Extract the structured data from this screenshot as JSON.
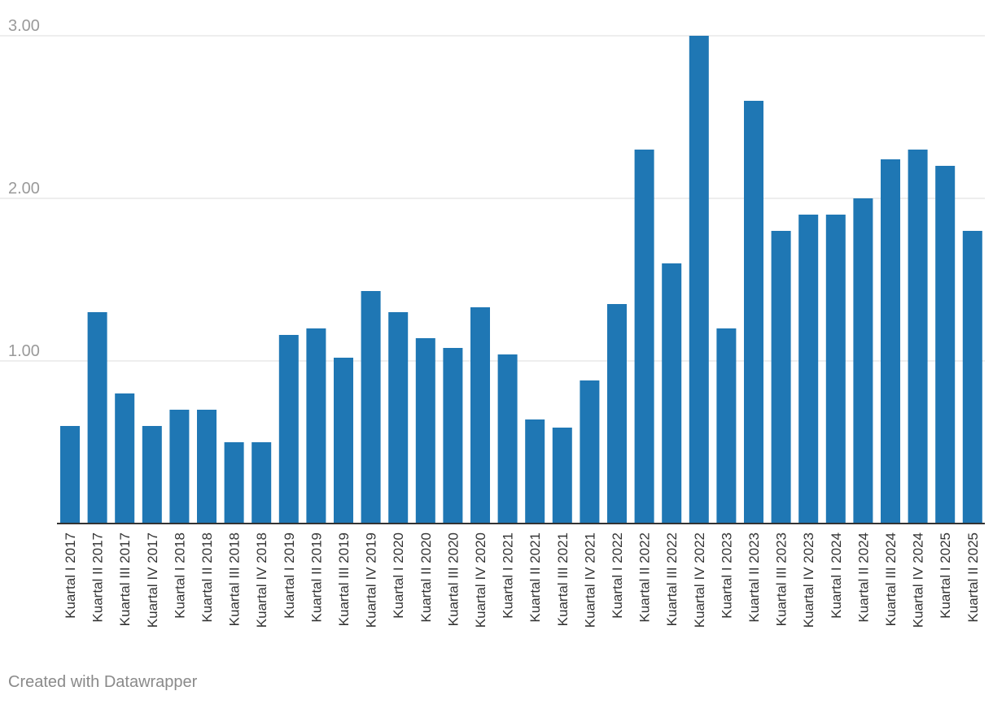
{
  "chart_data": {
    "type": "bar",
    "categories": [
      "Kuartal I 2017",
      "Kuartal II 2017",
      "Kuartal III 2017",
      "Kuartal IV 2017",
      "Kuartal I 2018",
      "Kuartal II 2018",
      "Kuartal III 2018",
      "Kuartal IV 2018",
      "Kuartal I 2019",
      "Kuartal II 2019",
      "Kuartal III 2019",
      "Kuartal IV 2019",
      "Kuartal I 2020",
      "Kuartal II 2020",
      "Kuartal III 2020",
      "Kuartal IV 2020",
      "Kuartal I 2021",
      "Kuartal II 2021",
      "Kuartal III 2021",
      "Kuartal IV 2021",
      "Kuartal I 2022",
      "Kuartal II 2022",
      "Kuartal III 2022",
      "Kuartal IV 2022",
      "Kuartal I 2023",
      "Kuartal II 2023",
      "Kuartal III 2023",
      "Kuartal IV 2023",
      "Kuartal I 2024",
      "Kuartal II 2024",
      "Kuartal III 2024",
      "Kuartal IV 2024",
      "Kuartal I 2025",
      "Kuartal II 2025"
    ],
    "values": [
      0.6,
      1.3,
      0.8,
      0.6,
      0.7,
      0.7,
      0.5,
      0.5,
      1.16,
      1.2,
      1.02,
      1.43,
      1.3,
      1.14,
      1.08,
      1.33,
      1.04,
      0.64,
      0.59,
      0.88,
      1.35,
      2.3,
      1.6,
      3.0,
      1.2,
      2.6,
      1.8,
      1.9,
      1.9,
      2.0,
      2.24,
      2.3,
      2.2,
      1.8
    ],
    "ylim": [
      0,
      3
    ],
    "yticks": [
      "1.00",
      "2.00",
      "3.00"
    ],
    "ytick_values": [
      1,
      2,
      3
    ],
    "grid": true,
    "bar_color": "#1f77b4",
    "title": "",
    "xlabel": "",
    "ylabel": ""
  },
  "footer": {
    "credit": "Created with Datawrapper"
  }
}
